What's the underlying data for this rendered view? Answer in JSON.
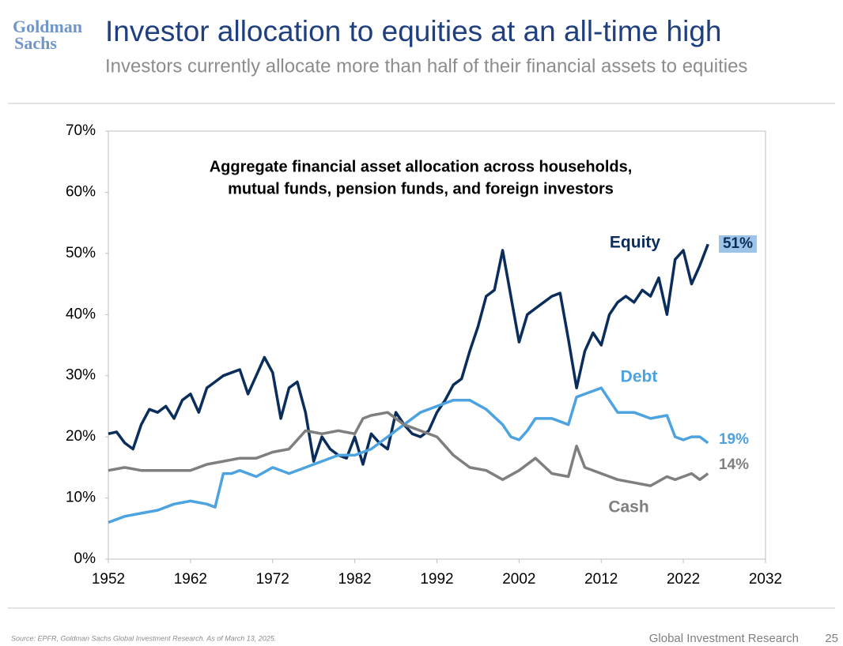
{
  "header": {
    "logo": [
      "Goldman",
      "Sachs"
    ],
    "title": "Investor allocation to equities at an all-time high",
    "subtitle": "Investors currently allocate more than half of their financial assets to equities"
  },
  "chart_data": {
    "type": "line",
    "title": [
      "Aggregate financial asset allocation across households,",
      "mutual funds, pension funds, and foreign investors"
    ],
    "xlim": [
      1952,
      2032
    ],
    "xticks": [
      1952,
      1962,
      1972,
      1982,
      1992,
      2002,
      2012,
      2022,
      2032
    ],
    "ylim": [
      0,
      70
    ],
    "yticks": [
      {
        "value": 0,
        "label": "0%"
      },
      {
        "value": 10,
        "label": "10%"
      },
      {
        "value": 20,
        "label": "20%"
      },
      {
        "value": 30,
        "label": "30%"
      },
      {
        "value": 40,
        "label": "40%"
      },
      {
        "value": 50,
        "label": "50%"
      },
      {
        "value": 60,
        "label": "60%"
      },
      {
        "value": 70,
        "label": "70%"
      }
    ],
    "grid": false,
    "series": [
      {
        "name": "Equity",
        "color": "#0b2d5b",
        "last_label": "51%",
        "x": [
          1952,
          1953,
          1954,
          1955,
          1956,
          1957,
          1958,
          1959,
          1960,
          1961,
          1962,
          1963,
          1964,
          1965,
          1966,
          1967,
          1968,
          1969,
          1970,
          1971,
          1972,
          1973,
          1974,
          1975,
          1976,
          1977,
          1978,
          1979,
          1980,
          1981,
          1982,
          1983,
          1984,
          1985,
          1986,
          1987,
          1988,
          1989,
          1990,
          1991,
          1992,
          1993,
          1994,
          1995,
          1996,
          1997,
          1998,
          1999,
          2000,
          2001,
          2002,
          2003,
          2004,
          2005,
          2006,
          2007,
          2008,
          2009,
          2010,
          2011,
          2012,
          2013,
          2014,
          2015,
          2016,
          2017,
          2018,
          2019,
          2020,
          2021,
          2022,
          2023,
          2024,
          2025
        ],
        "values": [
          20.5,
          20.8,
          19,
          18,
          22,
          24.5,
          24,
          25,
          23,
          26,
          27,
          24,
          28,
          29,
          30,
          30.5,
          31,
          27,
          30,
          33,
          30.5,
          23,
          28,
          29,
          24,
          16,
          20,
          18,
          17,
          16.5,
          20,
          15.5,
          20.5,
          19,
          18,
          24,
          22,
          20.5,
          20,
          21,
          24,
          26,
          28.5,
          29.5,
          34,
          38,
          43,
          44,
          50.5,
          43,
          35.5,
          40,
          41,
          42,
          43,
          43.5,
          36,
          28,
          34,
          37,
          35,
          40,
          42,
          43,
          42,
          44,
          43,
          46,
          40,
          49,
          50.5,
          45,
          48,
          51.5
        ]
      },
      {
        "name": "Debt",
        "color": "#4da3e0",
        "last_label": "19%",
        "x": [
          1952,
          1954,
          1956,
          1958,
          1960,
          1962,
          1964,
          1965,
          1966,
          1967,
          1968,
          1970,
          1972,
          1974,
          1976,
          1978,
          1980,
          1982,
          1984,
          1986,
          1988,
          1990,
          1992,
          1994,
          1996,
          1998,
          2000,
          2001,
          2002,
          2003,
          2004,
          2006,
          2008,
          2009,
          2010,
          2011,
          2012,
          2014,
          2016,
          2018,
          2020,
          2021,
          2022,
          2023,
          2024,
          2025
        ],
        "values": [
          6,
          7,
          7.5,
          8,
          9,
          9.5,
          9,
          8.5,
          14,
          14,
          14.5,
          13.5,
          15,
          14,
          15,
          16,
          17,
          17,
          18,
          20,
          22,
          24,
          25,
          26,
          26,
          24.5,
          22,
          20,
          19.5,
          21,
          23,
          23,
          22,
          26.5,
          27,
          27.5,
          28,
          24,
          24,
          23,
          23.5,
          20,
          19.5,
          20,
          20,
          19
        ]
      },
      {
        "name": "Cash",
        "color": "#7f7f7f",
        "last_label": "14%",
        "x": [
          1952,
          1954,
          1956,
          1958,
          1960,
          1962,
          1964,
          1966,
          1968,
          1970,
          1972,
          1974,
          1976,
          1978,
          1980,
          1982,
          1983,
          1984,
          1986,
          1988,
          1990,
          1992,
          1994,
          1996,
          1998,
          2000,
          2002,
          2004,
          2006,
          2008,
          2009,
          2010,
          2012,
          2014,
          2016,
          2018,
          2020,
          2021,
          2022,
          2023,
          2024,
          2025
        ],
        "values": [
          14.5,
          15,
          14.5,
          14.5,
          14.5,
          14.5,
          15.5,
          16,
          16.5,
          16.5,
          17.5,
          18,
          21,
          20.5,
          21,
          20.5,
          23,
          23.5,
          24,
          22,
          21,
          20,
          17,
          15,
          14.5,
          13,
          14.5,
          16.5,
          14,
          13.5,
          18.5,
          15,
          14,
          13,
          12.5,
          12,
          13.5,
          13,
          13.5,
          14,
          13,
          14
        ]
      }
    ]
  },
  "footer": {
    "source": "Source: EPFR, Goldman Sachs Global Investment Research. As of March 13, 2025.",
    "brand": "Global Investment Research",
    "page": "25"
  }
}
